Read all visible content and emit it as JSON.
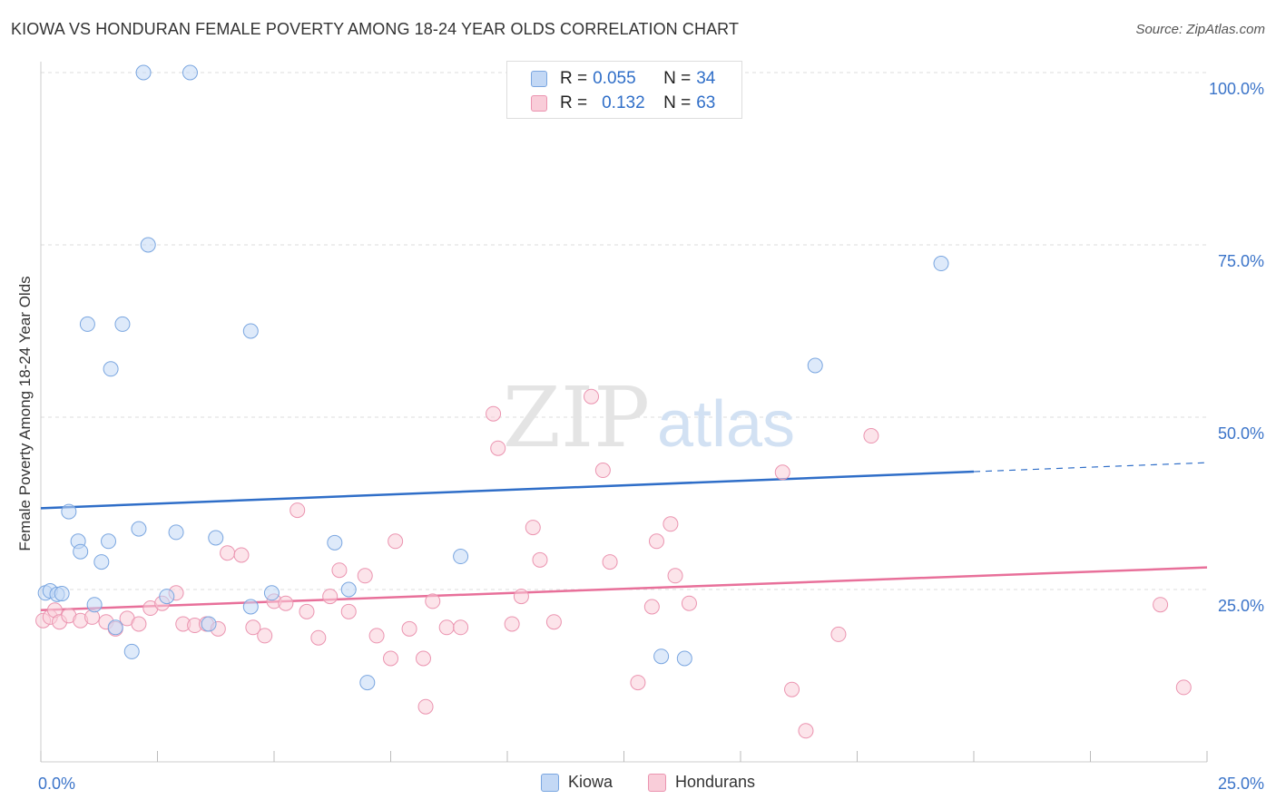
{
  "header": {
    "title": "KIOWA VS HONDURAN FEMALE POVERTY AMONG 18-24 YEAR OLDS CORRELATION CHART",
    "source": "Source: ZipAtlas.com"
  },
  "watermark": {
    "zip": "ZIP",
    "atlas": "atlas"
  },
  "legend": {
    "kiowa": {
      "r_label": "R = ",
      "r_value": "0.055",
      "n_label": "N = ",
      "n_value": "34",
      "color": "#a9c8f0"
    },
    "hondurans": {
      "r_label": "R = ",
      "r_value": "0.132",
      "n_label": "N = ",
      "n_value": "63",
      "color": "#f6b8cb"
    }
  },
  "bottom_legend": {
    "kiowa": "Kiowa",
    "hondurans": "Hondurans"
  },
  "colors": {
    "kiowa_fill": "#c3d8f5",
    "kiowa_stroke": "#7aa6e0",
    "kiowa_line": "#2f6ec8",
    "hond_fill": "#f9cdd9",
    "hond_stroke": "#eb94b0",
    "hond_line": "#e8709a",
    "tick_label": "#3b74c9",
    "grid": "#dddddd"
  },
  "chart_data": {
    "type": "scatter",
    "title": "KIOWA VS HONDURAN FEMALE POVERTY AMONG 18-24 YEAR OLDS CORRELATION CHART",
    "ylabel": "Female Poverty Among 18-24 Year Olds",
    "xlim": [
      0,
      25
    ],
    "ylim": [
      0,
      100
    ],
    "x_tick_labels": [
      {
        "value": 0,
        "label": "0.0%"
      },
      {
        "value": 25,
        "label": "25.0%"
      }
    ],
    "y_tick_labels": [
      {
        "value": 25,
        "label": "25.0%"
      },
      {
        "value": 50,
        "label": "50.0%"
      },
      {
        "value": 75,
        "label": "75.0%"
      },
      {
        "value": 100,
        "label": "100.0%"
      }
    ],
    "grid": true,
    "legend_position": "top-center",
    "series": [
      {
        "name": "Kiowa",
        "r": 0.055,
        "n": 34,
        "trend": {
          "x0": 0,
          "y0": 36.8,
          "x1": 20,
          "y1": 42.1,
          "dashed_to_x": 25,
          "dashed_to_y": 43.4
        },
        "points": [
          [
            0.1,
            24.5
          ],
          [
            0.2,
            24.8
          ],
          [
            0.35,
            24.3
          ],
          [
            0.45,
            24.4
          ],
          [
            0.6,
            36.3
          ],
          [
            0.8,
            32.0
          ],
          [
            0.85,
            30.5
          ],
          [
            1.0,
            63.5
          ],
          [
            1.15,
            22.8
          ],
          [
            1.3,
            29.0
          ],
          [
            1.45,
            32.0
          ],
          [
            1.5,
            57.0
          ],
          [
            1.6,
            19.5
          ],
          [
            1.75,
            63.5
          ],
          [
            1.95,
            16.0
          ],
          [
            2.1,
            33.8
          ],
          [
            2.2,
            100.0
          ],
          [
            2.3,
            75.0
          ],
          [
            2.7,
            24.0
          ],
          [
            2.9,
            33.3
          ],
          [
            3.2,
            100.0
          ],
          [
            3.6,
            20.0
          ],
          [
            3.75,
            32.5
          ],
          [
            4.5,
            62.5
          ],
          [
            4.5,
            22.5
          ],
          [
            4.95,
            24.5
          ],
          [
            6.3,
            31.8
          ],
          [
            6.6,
            25.0
          ],
          [
            7.0,
            11.5
          ],
          [
            9.0,
            29.8
          ],
          [
            13.3,
            15.3
          ],
          [
            13.8,
            15.0
          ],
          [
            16.6,
            57.5
          ],
          [
            19.3,
            72.3
          ]
        ]
      },
      {
        "name": "Hondurans",
        "r": 0.132,
        "n": 63,
        "trend": {
          "x0": 0,
          "y0": 22.0,
          "x1": 25,
          "y1": 28.2
        },
        "points": [
          [
            0.05,
            20.5
          ],
          [
            0.2,
            21.0
          ],
          [
            0.3,
            22.0
          ],
          [
            0.4,
            20.3
          ],
          [
            0.6,
            21.2
          ],
          [
            0.85,
            20.5
          ],
          [
            1.1,
            21.0
          ],
          [
            1.4,
            20.3
          ],
          [
            1.6,
            19.3
          ],
          [
            1.85,
            20.8
          ],
          [
            2.1,
            20.0
          ],
          [
            2.35,
            22.3
          ],
          [
            2.6,
            23.0
          ],
          [
            2.9,
            24.5
          ],
          [
            3.05,
            20.0
          ],
          [
            3.3,
            19.8
          ],
          [
            3.55,
            20.0
          ],
          [
            3.8,
            19.3
          ],
          [
            4.0,
            30.3
          ],
          [
            4.3,
            30.0
          ],
          [
            4.55,
            19.5
          ],
          [
            4.8,
            18.3
          ],
          [
            5.0,
            23.3
          ],
          [
            5.25,
            23.0
          ],
          [
            5.5,
            36.5
          ],
          [
            5.7,
            21.8
          ],
          [
            5.95,
            18.0
          ],
          [
            6.2,
            24.0
          ],
          [
            6.4,
            27.8
          ],
          [
            6.6,
            21.8
          ],
          [
            6.95,
            27.0
          ],
          [
            7.2,
            18.3
          ],
          [
            7.5,
            15.0
          ],
          [
            7.6,
            32.0
          ],
          [
            7.9,
            19.3
          ],
          [
            8.2,
            15.0
          ],
          [
            8.25,
            8.0
          ],
          [
            8.4,
            23.3
          ],
          [
            8.7,
            19.5
          ],
          [
            9.0,
            19.5
          ],
          [
            9.7,
            50.5
          ],
          [
            9.8,
            45.5
          ],
          [
            10.1,
            20.0
          ],
          [
            10.3,
            24.0
          ],
          [
            10.55,
            34.0
          ],
          [
            10.7,
            29.3
          ],
          [
            11.0,
            20.3
          ],
          [
            11.8,
            53.0
          ],
          [
            12.05,
            42.3
          ],
          [
            12.2,
            29.0
          ],
          [
            12.8,
            11.5
          ],
          [
            13.1,
            22.5
          ],
          [
            13.2,
            32.0
          ],
          [
            13.5,
            34.5
          ],
          [
            13.6,
            27.0
          ],
          [
            13.9,
            23.0
          ],
          [
            15.9,
            42.0
          ],
          [
            16.1,
            10.5
          ],
          [
            16.4,
            4.5
          ],
          [
            17.1,
            18.5
          ],
          [
            17.8,
            47.3
          ],
          [
            24.0,
            22.8
          ],
          [
            24.5,
            10.8
          ]
        ]
      }
    ]
  }
}
